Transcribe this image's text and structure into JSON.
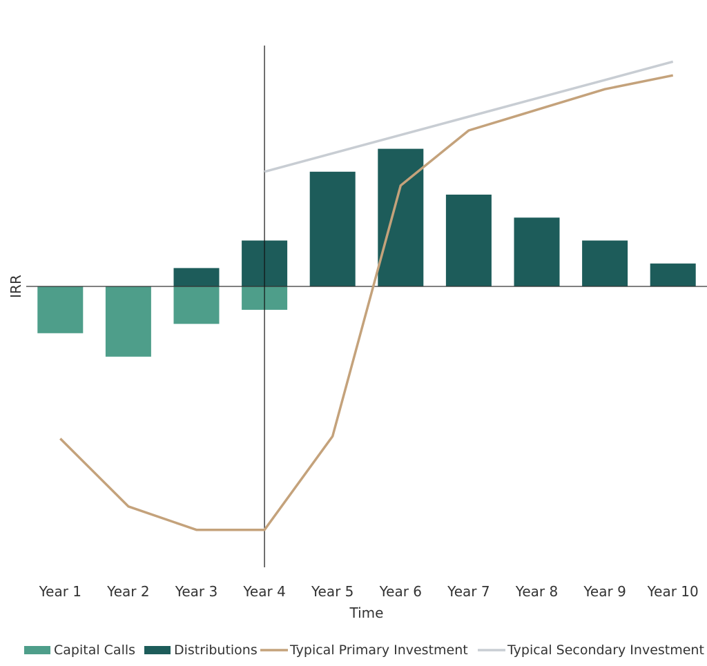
{
  "chart_data": {
    "type": "bar",
    "title": "",
    "xlabel": "Time",
    "ylabel": "IRR",
    "categories": [
      "Year 1",
      "Year 2",
      "Year 3",
      "Year 4",
      "Year 5",
      "Year 6",
      "Year 7",
      "Year 8",
      "Year 9",
      "Year 10"
    ],
    "ylim": [
      -12,
      10.5
    ],
    "grid": false,
    "legend": "bottom",
    "vertical_marker_at": "Year 4",
    "series": [
      {
        "name": "Capital Calls",
        "kind": "bar",
        "color": "#4e9e8a",
        "values": [
          -2,
          -3,
          -1.6,
          -1,
          0,
          0,
          0,
          0,
          0,
          0
        ]
      },
      {
        "name": "Distributions",
        "kind": "bar",
        "color": "#1d5c5a",
        "values": [
          0,
          0,
          0.8,
          2,
          5,
          6,
          4,
          3,
          2,
          1
        ]
      },
      {
        "name": "Typical Primary Investment",
        "kind": "line",
        "color": "#c4a27b",
        "values": [
          -6.5,
          -9.4,
          -10.4,
          -10.4,
          -6.4,
          4.4,
          6.8,
          7.7,
          8.6,
          9.2
        ]
      },
      {
        "name": "Typical Secondary Investment",
        "kind": "line",
        "color": "#c8cdd3",
        "values": [
          null,
          null,
          null,
          5,
          5.8,
          6.6,
          7.4,
          8.2,
          9,
          9.8
        ]
      }
    ]
  }
}
